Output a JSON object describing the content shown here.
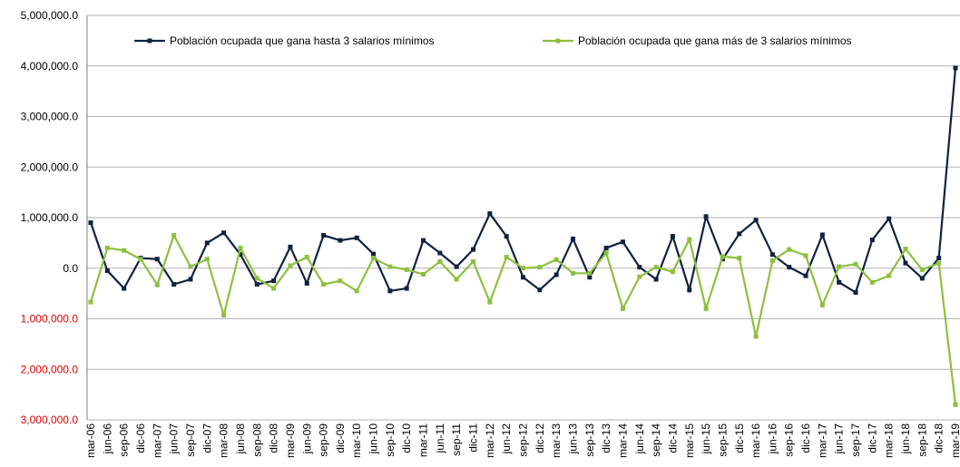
{
  "chart_data": {
    "type": "line",
    "categories": [
      "mar-06",
      "jun-06",
      "sep-06",
      "dic-06",
      "mar-07",
      "jun-07",
      "sep-07",
      "dic-07",
      "mar-08",
      "jun-08",
      "sep-08",
      "dic-08",
      "mar-09",
      "jun-09",
      "sep-09",
      "dic-09",
      "mar-10",
      "jun-10",
      "sep-10",
      "dic-10",
      "mar-11",
      "jun-11",
      "sep-11",
      "dic-11",
      "mar-12",
      "jun-12",
      "sep-12",
      "dic-12",
      "mar-13",
      "jun-13",
      "sep-13",
      "dic-13",
      "mar-14",
      "jun-14",
      "sep-14",
      "dic-14",
      "mar-15",
      "jun-15",
      "sep-15",
      "dic-15",
      "mar-16",
      "jun-16",
      "sep-16",
      "dic-16",
      "mar-17",
      "jun-17",
      "sep-17",
      "dic-17",
      "mar-18",
      "jun-18",
      "sep-18",
      "dic-18",
      "mar-19"
    ],
    "series": [
      {
        "name": "Población ocupada que gana hasta 3 salarios mínimos",
        "color": "#10223f",
        "values": [
          900000,
          -50000,
          -400000,
          200000,
          180000,
          -320000,
          -220000,
          500000,
          700000,
          270000,
          -320000,
          -250000,
          420000,
          -300000,
          650000,
          550000,
          600000,
          280000,
          -450000,
          -400000,
          550000,
          300000,
          30000,
          370000,
          1080000,
          630000,
          -180000,
          -430000,
          -130000,
          580000,
          -180000,
          400000,
          520000,
          20000,
          -220000,
          630000,
          -430000,
          1020000,
          180000,
          680000,
          950000,
          270000,
          20000,
          -150000,
          660000,
          -280000,
          -480000,
          560000,
          980000,
          100000,
          -200000,
          200000,
          3960000
        ]
      },
      {
        "name": "Población ocupada que gana más de 3 salarios mínimos",
        "color": "#8dc03f",
        "values": [
          -670000,
          400000,
          350000,
          180000,
          -330000,
          650000,
          30000,
          180000,
          -930000,
          400000,
          -200000,
          -400000,
          50000,
          220000,
          -320000,
          -250000,
          -450000,
          200000,
          30000,
          -30000,
          -120000,
          130000,
          -220000,
          130000,
          -670000,
          220000,
          0,
          20000,
          170000,
          -100000,
          -100000,
          300000,
          -800000,
          -170000,
          20000,
          -70000,
          570000,
          -800000,
          230000,
          200000,
          -1350000,
          150000,
          370000,
          250000,
          -730000,
          30000,
          80000,
          -280000,
          -150000,
          380000,
          -30000,
          100000,
          -2700000
        ]
      }
    ],
    "ylim": [
      -3000000,
      5000000
    ],
    "yticks": [
      {
        "value": -3000000,
        "label": "3,000,000.0"
      },
      {
        "value": -2000000,
        "label": "2,000,000.0"
      },
      {
        "value": -1000000,
        "label": "1,000,000.0"
      },
      {
        "value": 0,
        "label": "0.0"
      },
      {
        "value": 1000000,
        "label": "1,000,000.0"
      },
      {
        "value": 2000000,
        "label": "2,000,000.0"
      },
      {
        "value": 3000000,
        "label": "3,000,000.0"
      },
      {
        "value": 4000000,
        "label": "4,000,000.0"
      },
      {
        "value": 5000000,
        "label": "5,000,000.0"
      }
    ],
    "grid": true,
    "legend": "top"
  }
}
